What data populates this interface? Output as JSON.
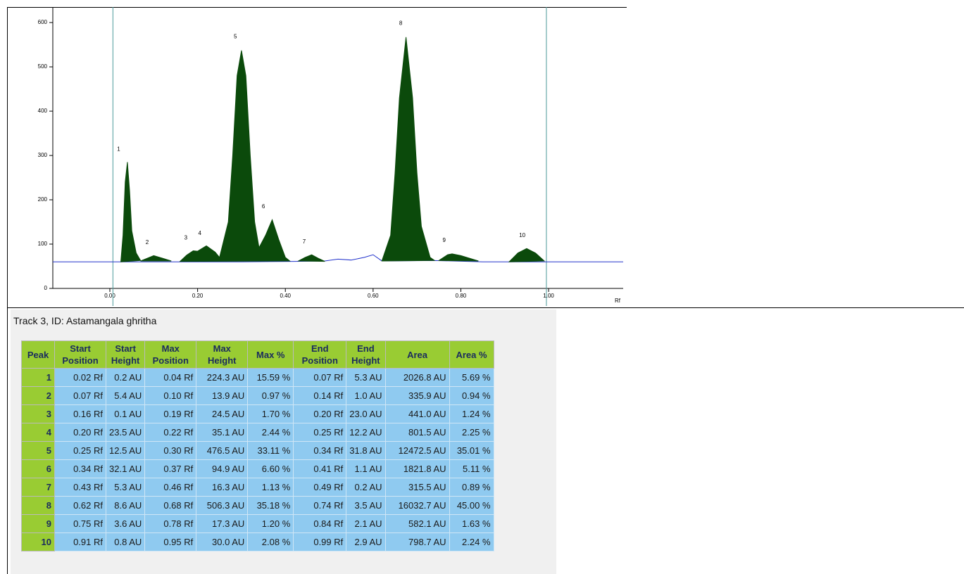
{
  "chart_data": {
    "type": "area",
    "x_label": "Rf",
    "xlim": [
      -0.13,
      1.17
    ],
    "xticks": [
      {
        "value": 0,
        "label": "0.00"
      },
      {
        "value": 0.2,
        "label": "0.20"
      },
      {
        "value": 0.4,
        "label": "0.40"
      },
      {
        "value": 0.6,
        "label": "0.60"
      },
      {
        "value": 0.8,
        "label": "0.80"
      },
      {
        "value": 1,
        "label": "1.00"
      }
    ],
    "ylim": [
      0,
      635
    ],
    "yticks": [
      0,
      100,
      200,
      300,
      400,
      500,
      600
    ],
    "markers": [
      0.007,
      0.995
    ],
    "series": [
      {
        "color": "#2233cc",
        "fill": false,
        "x": [
          -0.13,
          0.0,
          0.02,
          0.1,
          0.2,
          0.3,
          0.42,
          0.49,
          0.52,
          0.55,
          0.58,
          0.6,
          0.62,
          0.74,
          0.85,
          1.0,
          1.17
        ],
        "values": [
          60,
          60,
          60,
          60,
          60,
          60,
          61,
          62,
          66,
          64,
          70,
          76,
          62,
          63,
          60,
          60,
          60
        ]
      },
      {
        "color": "#0b4a0b",
        "fill": true,
        "x": [
          0.025,
          0.03,
          0.035,
          0.04,
          0.045,
          0.05,
          0.06,
          0.07,
          null,
          0.07,
          0.085,
          0.1,
          0.12,
          0.14,
          null,
          0.16,
          0.175,
          0.19,
          0.2,
          0.22,
          0.24,
          0.25,
          0.27,
          0.28,
          0.29,
          0.3,
          0.31,
          0.32,
          0.33,
          0.34,
          0.355,
          0.37,
          0.385,
          0.4,
          0.41,
          null,
          0.43,
          0.445,
          0.46,
          0.475,
          0.49,
          null,
          0.62,
          0.64,
          0.65,
          0.66,
          0.675,
          0.69,
          0.7,
          0.71,
          0.73,
          0.74,
          null,
          0.75,
          0.77,
          0.78,
          0.8,
          0.84,
          null,
          0.91,
          0.93,
          0.95,
          0.97,
          0.99
        ],
        "values": [
          60,
          120,
          240,
          285,
          220,
          130,
          80,
          63,
          null,
          62,
          68,
          74,
          68,
          62,
          null,
          61,
          75,
          85,
          84,
          96,
          82,
          70,
          150,
          300,
          480,
          537,
          480,
          300,
          150,
          92,
          120,
          155,
          110,
          70,
          62,
          null,
          62,
          70,
          76,
          68,
          61,
          null,
          62,
          120,
          260,
          430,
          567,
          430,
          260,
          140,
          70,
          63,
          null,
          63,
          76,
          78,
          74,
          62,
          null,
          60,
          80,
          90,
          80,
          62
        ]
      }
    ],
    "annotations": [
      {
        "text": "1",
        "x": 0.02,
        "y": 314
      },
      {
        "text": "2",
        "x": 0.085,
        "y": 103
      },
      {
        "text": "3",
        "x": 0.173,
        "y": 114
      },
      {
        "text": "4",
        "x": 0.205,
        "y": 124
      },
      {
        "text": "5",
        "x": 0.286,
        "y": 568
      },
      {
        "text": "6",
        "x": 0.35,
        "y": 184
      },
      {
        "text": "7",
        "x": 0.443,
        "y": 105
      },
      {
        "text": "8",
        "x": 0.663,
        "y": 598
      },
      {
        "text": "9",
        "x": 0.762,
        "y": 108
      },
      {
        "text": "10",
        "x": 0.94,
        "y": 119
      }
    ]
  },
  "table": {
    "title": "Track 3, ID: Astamangala ghritha",
    "headers": [
      "Peak",
      "Start Position",
      "Start Height",
      "Max Position",
      "Max Height",
      "Max %",
      "End Position",
      "End Height",
      "Area",
      "Area %"
    ],
    "rows": [
      [
        "1",
        "0.02 Rf",
        "0.2 AU",
        "0.04 Rf",
        "224.3 AU",
        "15.59 %",
        "0.07 Rf",
        "5.3 AU",
        "2026.8 AU",
        "5.69 %"
      ],
      [
        "2",
        "0.07 Rf",
        "5.4 AU",
        "0.10 Rf",
        "13.9 AU",
        "0.97 %",
        "0.14 Rf",
        "1.0 AU",
        "335.9 AU",
        "0.94 %"
      ],
      [
        "3",
        "0.16 Rf",
        "0.1 AU",
        "0.19 Rf",
        "24.5 AU",
        "1.70 %",
        "0.20 Rf",
        "23.0 AU",
        "441.0 AU",
        "1.24 %"
      ],
      [
        "4",
        "0.20 Rf",
        "23.5 AU",
        "0.22 Rf",
        "35.1 AU",
        "2.44 %",
        "0.25 Rf",
        "12.2 AU",
        "801.5 AU",
        "2.25 %"
      ],
      [
        "5",
        "0.25 Rf",
        "12.5 AU",
        "0.30 Rf",
        "476.5 AU",
        "33.11 %",
        "0.34 Rf",
        "31.8 AU",
        "12472.5 AU",
        "35.01 %"
      ],
      [
        "6",
        "0.34 Rf",
        "32.1 AU",
        "0.37 Rf",
        "94.9 AU",
        "6.60 %",
        "0.41 Rf",
        "1.1 AU",
        "1821.8 AU",
        "5.11 %"
      ],
      [
        "7",
        "0.43 Rf",
        "5.3 AU",
        "0.46 Rf",
        "16.3 AU",
        "1.13 %",
        "0.49 Rf",
        "0.2 AU",
        "315.5 AU",
        "0.89 %"
      ],
      [
        "8",
        "0.62 Rf",
        "8.6 AU",
        "0.68 Rf",
        "506.3 AU",
        "35.18 %",
        "0.74 Rf",
        "3.5 AU",
        "16032.7 AU",
        "45.00 %"
      ],
      [
        "9",
        "0.75 Rf",
        "3.6 AU",
        "0.78 Rf",
        "17.3 AU",
        "1.20 %",
        "0.84 Rf",
        "2.1 AU",
        "582.1 AU",
        "1.63 %"
      ],
      [
        "10",
        "0.91 Rf",
        "0.8 AU",
        "0.95 Rf",
        "30.0 AU",
        "2.08 %",
        "0.99 Rf",
        "2.9 AU",
        "798.7 AU",
        "2.24 %"
      ]
    ]
  }
}
